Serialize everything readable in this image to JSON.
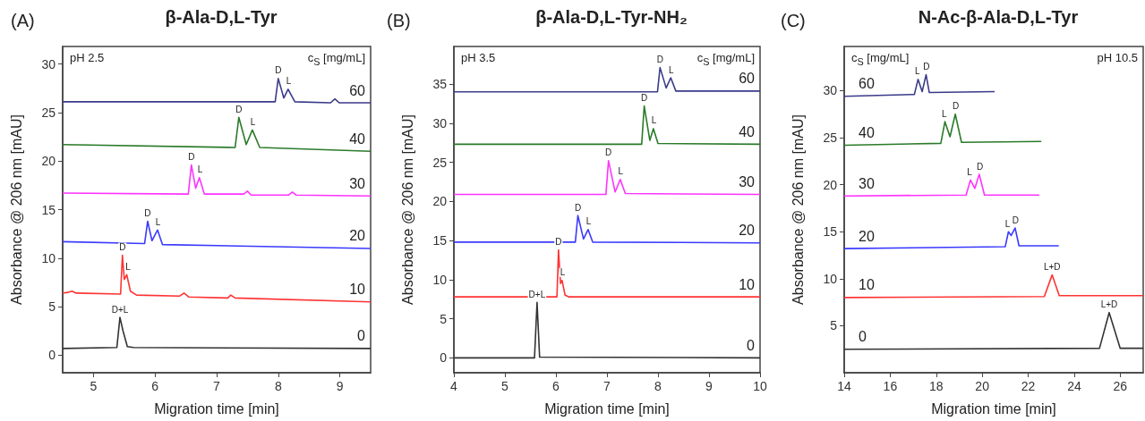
{
  "chart_data": [
    {
      "type": "line",
      "title": "β-Ala-D,L-Tyr",
      "xlabel": "Migration time [min]",
      "ylabel": "Absorbance @ 206 nm [mAU]",
      "xlim": [
        4.5,
        9.5
      ],
      "ylim": [
        -1.8,
        31.8
      ],
      "xticks": [
        5,
        6,
        7,
        8,
        9
      ],
      "yticks": [
        0,
        5,
        10,
        15,
        20,
        25,
        30
      ],
      "marker": "none",
      "series": [
        {
          "name": "0",
          "color": "#333333",
          "x": [
            4.5,
            5.38,
            5.43,
            5.48,
            5.55,
            5.65,
            9.5
          ],
          "values": [
            0.7,
            0.8,
            3.9,
            2.5,
            0.9,
            0.8,
            0.7
          ]
        },
        {
          "name": "10",
          "color": "#ff3333",
          "x": [
            4.5,
            4.6,
            4.65,
            4.72,
            5.44,
            5.47,
            5.5,
            5.54,
            5.6,
            5.7,
            6.4,
            6.47,
            6.55,
            7.18,
            7.23,
            7.3,
            9.5
          ],
          "values": [
            6.4,
            6.5,
            6.6,
            6.4,
            6.3,
            10.3,
            7.8,
            8.3,
            6.6,
            6.2,
            6.1,
            6.4,
            6.0,
            5.9,
            6.2,
            5.9,
            5.5
          ]
        },
        {
          "name": "20",
          "color": "#3a3aff",
          "x": [
            4.5,
            5.83,
            5.88,
            5.95,
            6.04,
            6.12,
            9.5
          ],
          "values": [
            11.7,
            11.5,
            13.8,
            11.8,
            12.9,
            11.4,
            11.0
          ]
        },
        {
          "name": "30",
          "color": "#ff33ff",
          "x": [
            4.5,
            6.54,
            6.59,
            6.66,
            6.72,
            6.8,
            7.44,
            7.5,
            7.56,
            8.17,
            8.23,
            8.29,
            9.5
          ],
          "values": [
            16.7,
            16.6,
            19.6,
            17.2,
            18.3,
            16.6,
            16.6,
            16.9,
            16.5,
            16.5,
            16.8,
            16.5,
            16.4
          ]
        },
        {
          "name": "40",
          "color": "#2a7a2a",
          "x": [
            4.5,
            7.3,
            7.36,
            7.48,
            7.58,
            7.7,
            9.5
          ],
          "values": [
            21.7,
            21.4,
            24.5,
            21.7,
            23.2,
            21.4,
            21.0
          ]
        },
        {
          "name": "60",
          "color": "#3a3a8a",
          "x": [
            4.5,
            7.95,
            8.0,
            8.09,
            8.16,
            8.27,
            8.85,
            8.92,
            8.99,
            9.5
          ],
          "values": [
            26.1,
            26.1,
            28.5,
            26.5,
            27.4,
            26.1,
            26.0,
            26.4,
            26.0,
            26.0
          ]
        }
      ],
      "annotations": [
        "(A)",
        "pH 2.5",
        "c$_{S}$ [mg/mL]",
        {
          "text": "D+L",
          "x": 5.43,
          "y": 3.9
        },
        {
          "text": "D",
          "x": 5.47,
          "y": 10.3
        },
        {
          "text": "L",
          "x": 5.56,
          "y": 8.3
        },
        {
          "text": "D",
          "x": 5.88,
          "y": 13.8
        },
        {
          "text": "L",
          "x": 6.05,
          "y": 12.9
        },
        {
          "text": "D",
          "x": 6.59,
          "y": 19.6
        },
        {
          "text": "L",
          "x": 6.73,
          "y": 18.3
        },
        {
          "text": "D",
          "x": 7.36,
          "y": 24.5
        },
        {
          "text": "L",
          "x": 7.59,
          "y": 23.2
        },
        {
          "text": "D",
          "x": 8.0,
          "y": 28.5
        },
        {
          "text": "L",
          "x": 8.17,
          "y": 27.4
        }
      ]
    },
    {
      "type": "line",
      "title": "β-Ala-D,L-Tyr-NH₂",
      "xlabel": "Migration time [min]",
      "ylabel": "Absorbance @ 206 nm [mAU]",
      "xlim": [
        4,
        10
      ],
      "ylim": [
        -1.9,
        39.8
      ],
      "xticks": [
        4,
        5,
        6,
        7,
        8,
        9,
        10
      ],
      "yticks": [
        0,
        5,
        10,
        15,
        20,
        25,
        30,
        35
      ],
      "marker": "none",
      "series": [
        {
          "name": "0",
          "color": "#333333",
          "x": [
            4,
            5.58,
            5.63,
            5.68,
            10
          ],
          "values": [
            0,
            0,
            7.1,
            0.1,
            0
          ]
        },
        {
          "name": "10",
          "color": "#ff3333",
          "x": [
            4,
            6.02,
            6.05,
            6.09,
            6.12,
            6.18,
            6.25,
            10
          ],
          "values": [
            7.8,
            7.8,
            13.8,
            9.5,
            9.9,
            8.0,
            7.8,
            7.8
          ]
        },
        {
          "name": "20",
          "color": "#3a3aff",
          "x": [
            4,
            6.38,
            6.43,
            6.54,
            6.63,
            6.72,
            10
          ],
          "values": [
            14.8,
            14.8,
            18.2,
            15.2,
            16.4,
            14.8,
            14.7
          ]
        },
        {
          "name": "30",
          "color": "#ff33ff",
          "x": [
            4,
            6.98,
            7.03,
            7.16,
            7.26,
            7.36,
            10
          ],
          "values": [
            20.9,
            20.9,
            25.2,
            21.2,
            22.8,
            21.0,
            20.9
          ]
        },
        {
          "name": "40",
          "color": "#2a7a2a",
          "x": [
            4,
            7.68,
            7.73,
            7.84,
            7.91,
            8.0,
            10
          ],
          "values": [
            27.3,
            27.3,
            32.2,
            27.8,
            29.3,
            27.4,
            27.3
          ]
        },
        {
          "name": "60",
          "color": "#3a3a8a",
          "x": [
            4,
            7.99,
            8.04,
            8.16,
            8.25,
            8.35,
            10
          ],
          "values": [
            34.0,
            34.0,
            37.1,
            34.5,
            35.8,
            34.1,
            34.1
          ]
        }
      ],
      "annotations": [
        "(B)",
        "pH 3.5",
        "c$_{S}$ [mg/mL]",
        {
          "text": "D+L",
          "x": 5.63,
          "y": 7.1
        },
        {
          "text": "D",
          "x": 6.05,
          "y": 13.8
        },
        {
          "text": "L",
          "x": 6.13,
          "y": 9.9
        },
        {
          "text": "D",
          "x": 6.43,
          "y": 18.2
        },
        {
          "text": "L",
          "x": 6.64,
          "y": 16.4
        },
        {
          "text": "D",
          "x": 7.03,
          "y": 25.2
        },
        {
          "text": "L",
          "x": 7.27,
          "y": 22.8
        },
        {
          "text": "D",
          "x": 7.73,
          "y": 32.2
        },
        {
          "text": "L",
          "x": 7.92,
          "y": 29.3
        },
        {
          "text": "D",
          "x": 8.04,
          "y": 37.1
        },
        {
          "text": "L",
          "x": 8.26,
          "y": 35.8
        }
      ]
    },
    {
      "type": "line",
      "title": "N-Ac-β-Ala-D,L-Tyr",
      "xlabel": "Migration time [min]",
      "ylabel": "Absorbance @ 206 nm [mAU]",
      "xlim": [
        14,
        27
      ],
      "ylim": [
        0,
        34.7
      ],
      "xticks": [
        14,
        16,
        18,
        20,
        22,
        24,
        26
      ],
      "yticks": [
        5,
        10,
        15,
        20,
        25,
        30
      ],
      "marker": "none",
      "series": [
        {
          "name": "0",
          "color": "#333333",
          "x": [
            14,
            25.1,
            25.52,
            26.0,
            27
          ],
          "values": [
            2.5,
            2.6,
            6.4,
            2.6,
            2.6
          ]
        },
        {
          "name": "10",
          "color": "#ff3333",
          "x": [
            14,
            22.7,
            23.04,
            23.35,
            27
          ],
          "values": [
            8.0,
            8.1,
            10.4,
            8.2,
            8.2
          ]
        },
        {
          "name": "20",
          "color": "#3a3aff",
          "x": [
            14,
            21.0,
            21.14,
            21.26,
            21.43,
            21.6,
            23.33
          ],
          "values": [
            13.2,
            13.4,
            15.0,
            14.6,
            15.4,
            13.5,
            13.5
          ]
        },
        {
          "name": "30",
          "color": "#ff33ff",
          "x": [
            14,
            19.3,
            19.49,
            19.68,
            19.87,
            20.1,
            22.48
          ],
          "values": [
            18.8,
            18.9,
            20.5,
            19.6,
            21.1,
            18.9,
            18.9
          ]
        },
        {
          "name": "40",
          "color": "#2a7a2a",
          "x": [
            14,
            18.2,
            18.38,
            18.6,
            18.83,
            19.1,
            22.57
          ],
          "values": [
            24.2,
            24.4,
            26.7,
            25.1,
            27.5,
            24.5,
            24.6
          ]
        },
        {
          "name": "60",
          "color": "#3a3a8a",
          "x": [
            14,
            17.05,
            17.21,
            17.39,
            17.56,
            17.7,
            20.54
          ],
          "values": [
            29.4,
            29.6,
            31.2,
            29.9,
            31.7,
            29.8,
            29.9
          ]
        }
      ],
      "annotations": [
        "(C)",
        "c$_{S}$ [mg/mL]",
        "pH 10.5",
        {
          "text": "L+D",
          "x": 25.52,
          "y": 6.4
        },
        {
          "text": "L+D",
          "x": 23.04,
          "y": 10.4
        },
        {
          "text": "L",
          "x": 21.1,
          "y": 15.0
        },
        {
          "text": "D",
          "x": 21.45,
          "y": 15.4
        },
        {
          "text": "L",
          "x": 19.45,
          "y": 20.5
        },
        {
          "text": "D",
          "x": 19.9,
          "y": 21.1
        },
        {
          "text": "L",
          "x": 18.35,
          "y": 26.7
        },
        {
          "text": "D",
          "x": 18.85,
          "y": 27.5
        },
        {
          "text": "L",
          "x": 17.18,
          "y": 31.2
        },
        {
          "text": "D",
          "x": 17.58,
          "y": 31.7
        }
      ]
    }
  ]
}
